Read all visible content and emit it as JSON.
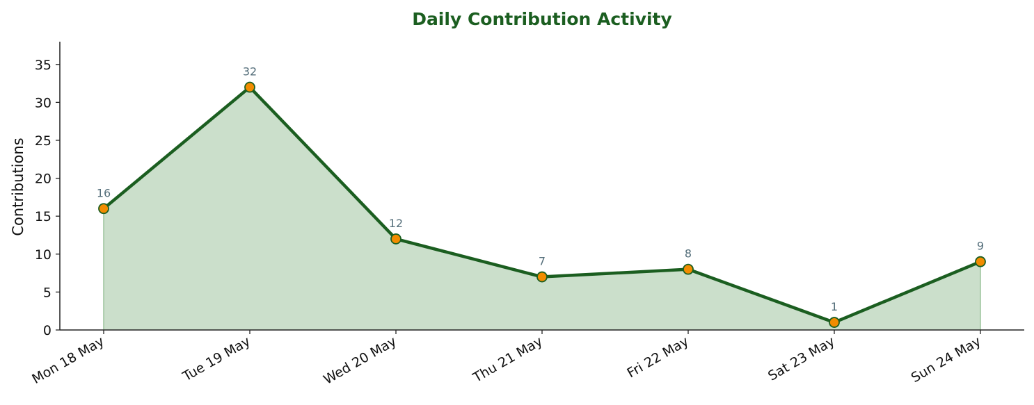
{
  "chart_data": {
    "type": "area",
    "title": "Daily Contribution Activity",
    "xlabel": "",
    "ylabel": "Contributions",
    "categories": [
      "Mon 18 May",
      "Tue 19 May",
      "Wed 20 May",
      "Thu 21 May",
      "Fri 22 May",
      "Sat 23 May",
      "Sun 24 May"
    ],
    "series": [
      {
        "values": [
          16,
          32,
          12,
          7,
          8,
          1,
          9
        ]
      }
    ],
    "ylim": [
      0,
      38
    ],
    "yticks": [
      0,
      5,
      10,
      15,
      20,
      25,
      30,
      35
    ],
    "grid": false,
    "legend": "none",
    "data_labels": true,
    "colors": {
      "title": "#1b5e20",
      "line": "#1b5e20",
      "fill": "#cbdfcb",
      "marker_fill": "#f28c00",
      "marker_edge": "#1b5e20",
      "data_label": "#546e7a",
      "axis": "#222222"
    }
  }
}
